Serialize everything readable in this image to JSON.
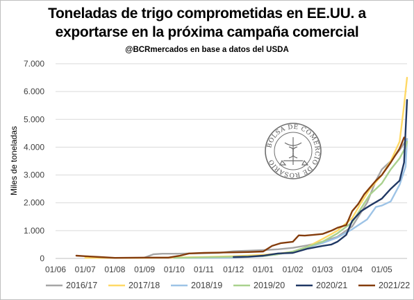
{
  "chart_data": {
    "type": "line",
    "title": "Toneladas de trigo comprometidas en EE.UU. a exportarse en la próxima campaña comercial",
    "title_lines": [
      "Toneladas de trigo comprometidas en EE.UU. a",
      "exportarse en la próxima campaña comercial"
    ],
    "subtitle": "@BCRmercados en base a datos del USDA",
    "ylabel": "Miles de toneladas",
    "xlabel": "",
    "ylim": [
      0,
      7000
    ],
    "yticks": [
      0,
      1000,
      2000,
      3000,
      4000,
      5000,
      6000,
      7000
    ],
    "ytick_labels": [
      "0",
      "1.000",
      "2.000",
      "3.000",
      "4.000",
      "5.000",
      "6.000",
      "7.000"
    ],
    "xlim": [
      0,
      11.85
    ],
    "xticks": [
      0,
      1,
      2,
      3,
      4,
      5,
      6,
      7,
      8,
      9,
      10,
      11
    ],
    "xtick_labels": [
      "01/06",
      "01/07",
      "01/08",
      "01/09",
      "01/10",
      "01/11",
      "01/12",
      "01/01",
      "01/02",
      "01/03",
      "01/04",
      "01/05"
    ],
    "grid": "horizontal",
    "legend_position": "bottom",
    "series": [
      {
        "name": "2016/17",
        "color": "#a6a6a6",
        "x": [
          3,
          3.3,
          3.6,
          4,
          4.5,
          5,
          5.5,
          6,
          6.5,
          7,
          7.5,
          8,
          8.5,
          9,
          9.5,
          10,
          10.5,
          10.8,
          11,
          11.3,
          11.6,
          11.85
        ],
        "y": [
          30,
          150,
          170,
          170,
          180,
          190,
          200,
          260,
          280,
          300,
          330,
          380,
          470,
          600,
          780,
          1150,
          2000,
          2800,
          3200,
          3500,
          3900,
          4300
        ]
      },
      {
        "name": "2017/18",
        "color": "#ffd966",
        "x": [
          1,
          1.5,
          2,
          3,
          4,
          5,
          6,
          7,
          7.5,
          8,
          8.5,
          9,
          9.5,
          10,
          10.3,
          10.6,
          11,
          11.3,
          11.6,
          11.75,
          11.85
        ],
        "y": [
          20,
          20,
          20,
          20,
          30,
          50,
          80,
          130,
          170,
          250,
          420,
          700,
          1000,
          1450,
          2000,
          2500,
          3000,
          3500,
          4200,
          5500,
          6500
        ]
      },
      {
        "name": "2018/19",
        "color": "#9dc3e6",
        "x": [
          4,
          5,
          6,
          7,
          7.5,
          8,
          8.5,
          9,
          9.5,
          10,
          10.5,
          10.8,
          11,
          11.3,
          11.6,
          11.8,
          11.85
        ],
        "y": [
          20,
          20,
          30,
          80,
          150,
          250,
          400,
          550,
          750,
          1050,
          1400,
          1850,
          1900,
          2050,
          2650,
          3300,
          4300
        ]
      },
      {
        "name": "2019/20",
        "color": "#a9d18e",
        "x": [
          4,
          5,
          6,
          7,
          7.5,
          8,
          8.5,
          9,
          9.5,
          10,
          10.3,
          10.6,
          11,
          11.3,
          11.6,
          11.8,
          11.85
        ],
        "y": [
          20,
          40,
          60,
          90,
          150,
          250,
          420,
          600,
          900,
          1300,
          1800,
          2300,
          2700,
          3200,
          3600,
          4000,
          4200
        ]
      },
      {
        "name": "2020/21",
        "color": "#203864",
        "x": [
          6,
          6.5,
          7,
          7.5,
          8,
          8.5,
          9,
          9.3,
          9.5,
          9.8,
          10,
          10.3,
          10.6,
          11,
          11.3,
          11.6,
          11.75,
          11.85
        ],
        "y": [
          50,
          60,
          100,
          180,
          200,
          350,
          450,
          500,
          600,
          850,
          1350,
          1700,
          1900,
          2150,
          2500,
          2800,
          3450,
          5700
        ]
      },
      {
        "name": "2021/22",
        "color": "#843c0c",
        "x": [
          0.7,
          1,
          1.5,
          2,
          3,
          3.8,
          4.2,
          4.5,
          5,
          5.5,
          6,
          6.5,
          7,
          7.3,
          7.6,
          8,
          8.2,
          8.4,
          8.7,
          9,
          9.3,
          9.5,
          9.8,
          10,
          10.2,
          10.4,
          10.6,
          10.8,
          11,
          11.3,
          11.6,
          11.75
        ],
        "y": [
          100,
          80,
          50,
          20,
          30,
          30,
          100,
          180,
          200,
          210,
          220,
          230,
          250,
          450,
          550,
          600,
          830,
          820,
          850,
          880,
          1000,
          1100,
          1200,
          1700,
          1950,
          2300,
          2550,
          2800,
          3000,
          3450,
          3950,
          4350
        ]
      }
    ]
  },
  "watermark": {
    "name": "seal",
    "text": "BOLSA DE COMERCIO DE ROSARIO"
  }
}
